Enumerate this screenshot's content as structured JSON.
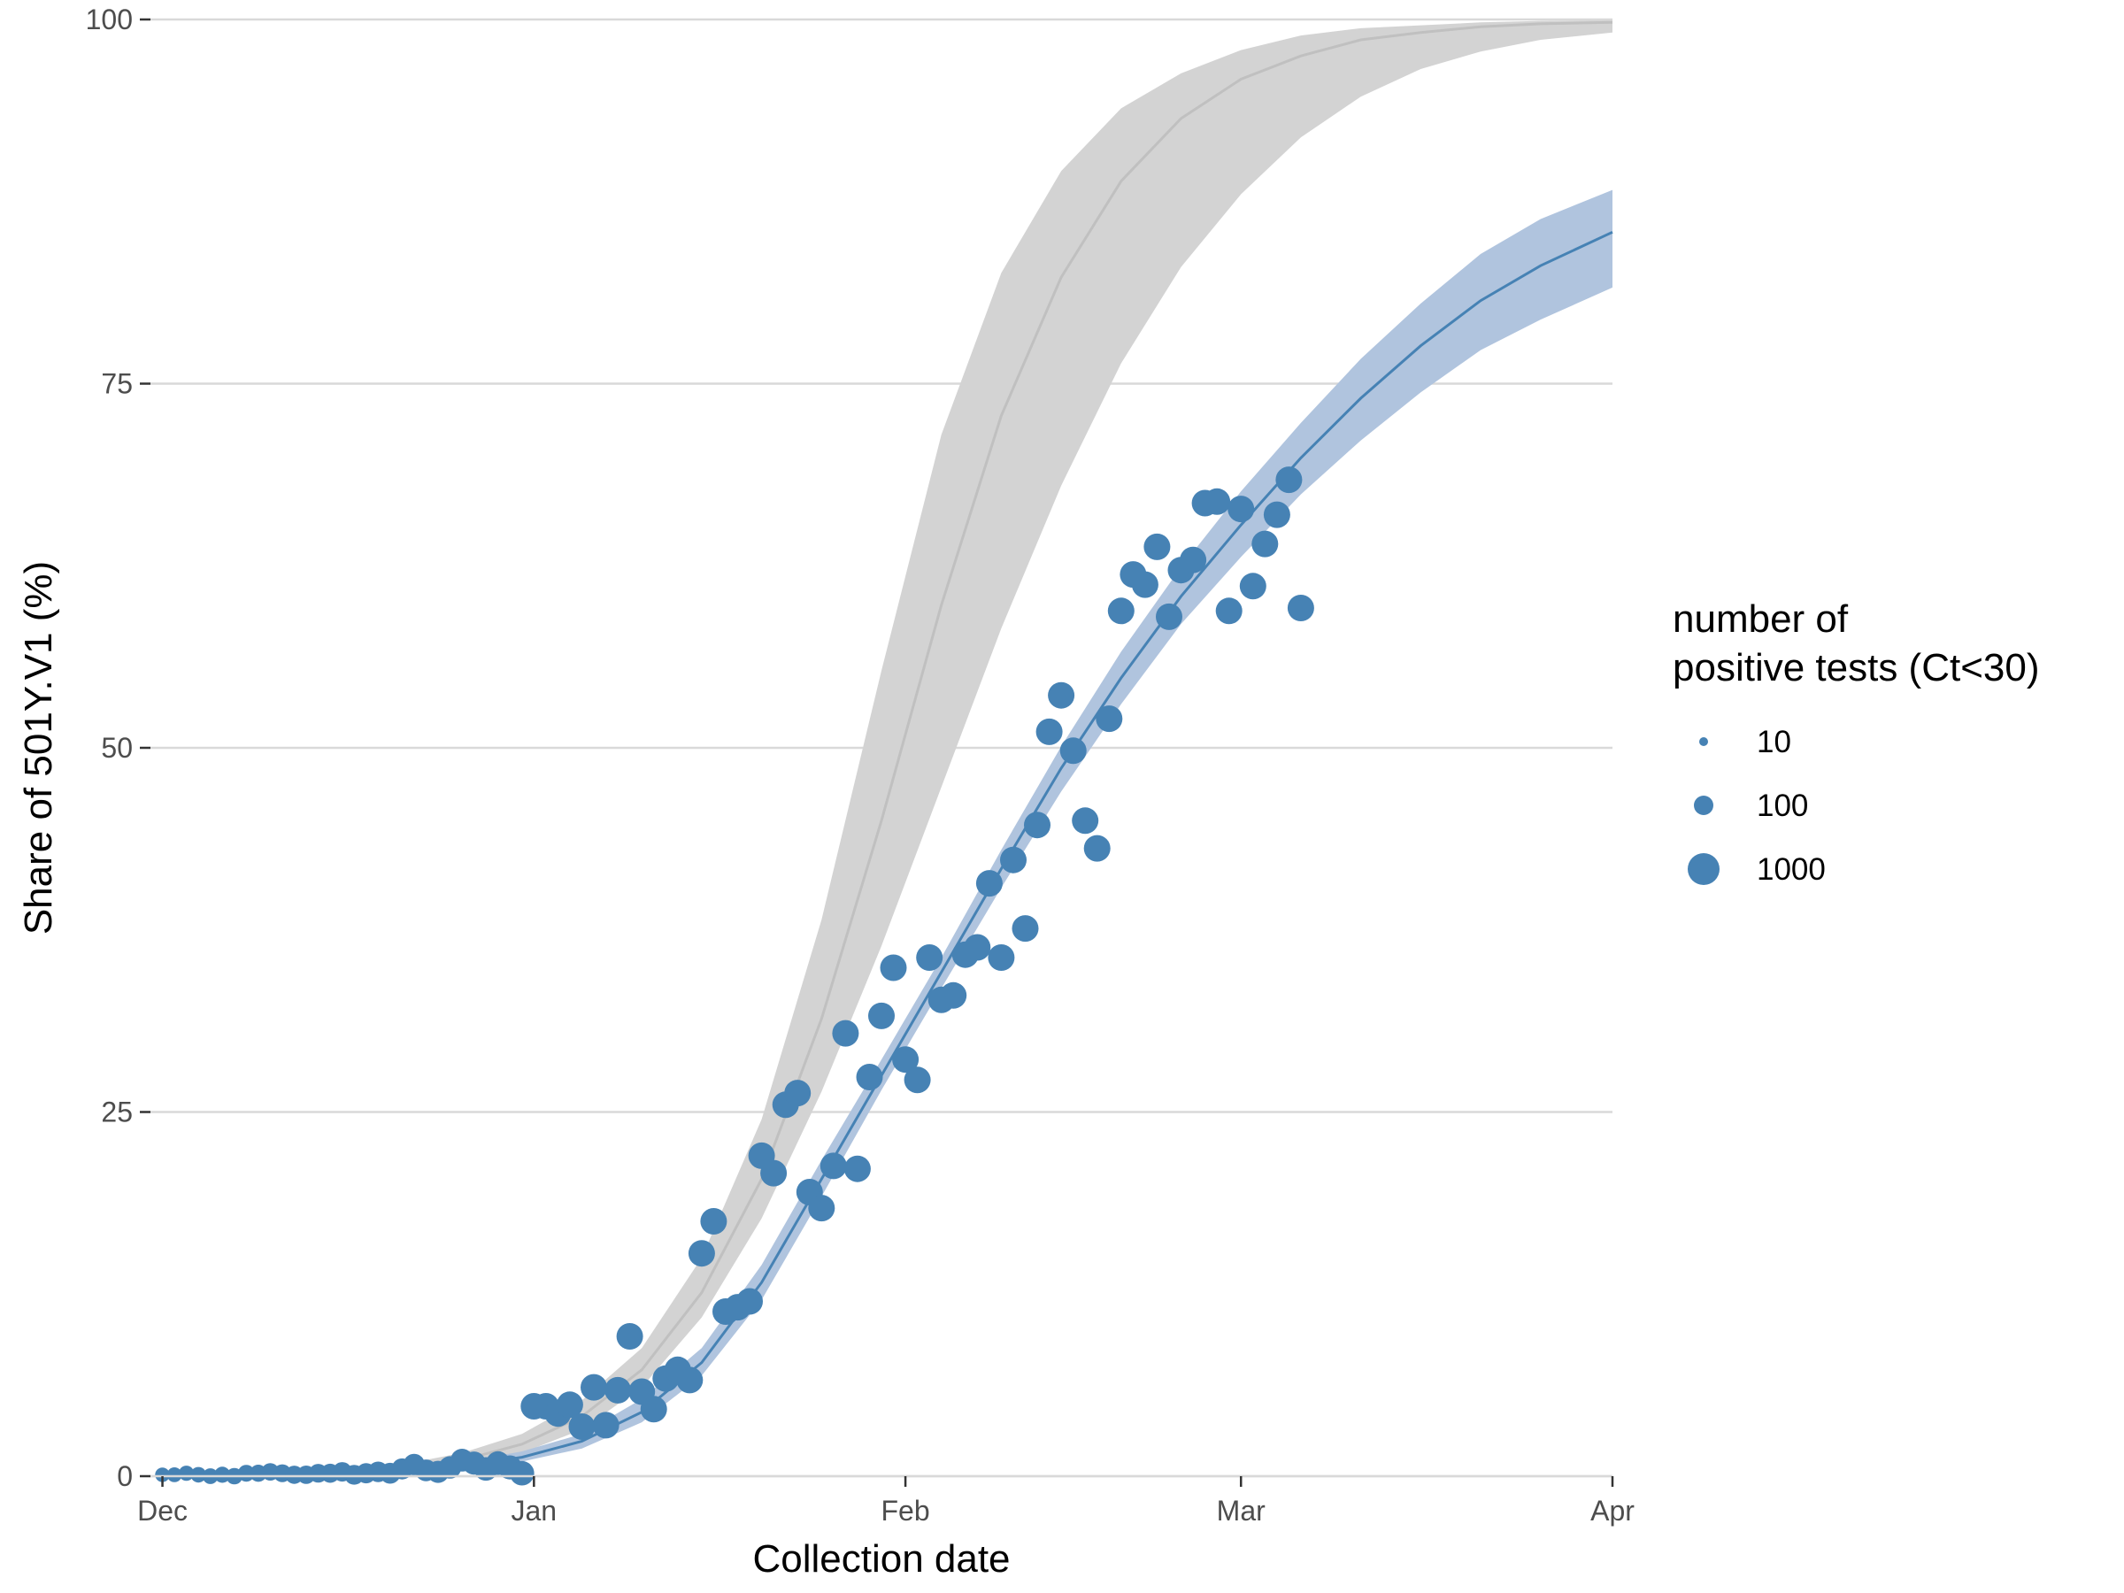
{
  "chart_data": {
    "type": "scatter",
    "xlabel": "Collection date",
    "ylabel": "Share of 501Y.V1 (%)",
    "xlim": [
      "2020-11-30",
      "2021-04-01"
    ],
    "ylim": [
      0,
      100
    ],
    "x_ticks": [
      {
        "date": "2020-12-01",
        "label": "Dec"
      },
      {
        "date": "2021-01-01",
        "label": "Jan"
      },
      {
        "date": "2021-02-01",
        "label": "Feb"
      },
      {
        "date": "2021-03-01",
        "label": "Mar"
      },
      {
        "date": "2021-04-01",
        "label": "Apr"
      }
    ],
    "y_ticks": [
      0,
      25,
      50,
      75,
      100
    ],
    "grid": true,
    "colors": {
      "points": "#4682b4",
      "fit_line": "#4682b4",
      "fit_band": "#b0c4de",
      "projection_line": "#c0c0c0",
      "projection_band": "#d3d3d3",
      "grid": "#d9d9d9"
    },
    "legend": {
      "title_lines": [
        "number of",
        "positive tests (Ct<30)"
      ],
      "position": "right",
      "entries": [
        {
          "label": "10",
          "value": 10
        },
        {
          "label": "100",
          "value": 100
        },
        {
          "label": "1000",
          "value": 1000
        }
      ]
    },
    "fit": {
      "description": "logistic",
      "x": [
        "2020-12-01",
        "2020-12-11",
        "2020-12-21",
        "2020-12-26",
        "2020-12-31",
        "2021-01-05",
        "2021-01-10",
        "2021-01-15",
        "2021-01-20",
        "2021-01-25",
        "2021-01-30",
        "2021-02-04",
        "2021-02-09",
        "2021-02-14",
        "2021-02-19",
        "2021-02-24",
        "2021-03-01",
        "2021-03-06",
        "2021-03-11",
        "2021-03-16",
        "2021-03-21",
        "2021-03-26",
        "2021-04-01"
      ],
      "y": [
        0.02,
        0.08,
        0.35,
        0.7,
        1.3,
        2.4,
        4.4,
        7.8,
        13.3,
        20.4,
        27.5,
        34.6,
        41.7,
        48.6,
        54.8,
        60.4,
        65.3,
        69.9,
        74.0,
        77.6,
        80.7,
        83.1,
        85.4
      ],
      "lower": [
        0.01,
        0.05,
        0.25,
        0.5,
        1.0,
        1.9,
        3.7,
        6.9,
        12.1,
        19.2,
        26.5,
        33.5,
        40.4,
        47.0,
        53.0,
        58.5,
        63.1,
        67.4,
        71.1,
        74.4,
        77.3,
        79.4,
        81.6
      ],
      "upper": [
        0.04,
        0.12,
        0.5,
        0.95,
        1.7,
        2.9,
        5.3,
        8.8,
        14.5,
        21.7,
        28.6,
        35.6,
        43.0,
        50.1,
        56.6,
        62.4,
        67.6,
        72.3,
        76.7,
        80.5,
        83.9,
        86.3,
        88.3
      ]
    },
    "projection": {
      "x": [
        "2020-12-01",
        "2020-12-11",
        "2020-12-21",
        "2020-12-26",
        "2020-12-31",
        "2021-01-05",
        "2021-01-10",
        "2021-01-15",
        "2021-01-20",
        "2021-01-25",
        "2021-01-30",
        "2021-02-04",
        "2021-02-09",
        "2021-02-14",
        "2021-02-19",
        "2021-02-24",
        "2021-03-01",
        "2021-03-06",
        "2021-03-11",
        "2021-03-16",
        "2021-03-21",
        "2021-03-26",
        "2021-04-01"
      ],
      "y": [
        0.02,
        0.1,
        0.5,
        1.1,
        2.2,
        4.1,
        7.3,
        12.6,
        20.4,
        31.4,
        45.0,
        59.8,
        72.8,
        82.3,
        88.9,
        93.2,
        95.9,
        97.5,
        98.6,
        99.1,
        99.5,
        99.7,
        99.8
      ],
      "lower": [
        0.01,
        0.07,
        0.35,
        0.8,
        1.6,
        3.2,
        6.1,
        10.9,
        17.7,
        26.4,
        36.4,
        47.3,
        58.2,
        68.0,
        76.4,
        83.0,
        88.0,
        91.9,
        94.7,
        96.6,
        97.8,
        98.6,
        99.1
      ],
      "upper": [
        0.04,
        0.15,
        0.8,
        1.6,
        2.9,
        5.2,
        8.8,
        15.0,
        24.5,
        38.2,
        55.3,
        71.5,
        82.6,
        89.6,
        93.9,
        96.3,
        97.9,
        98.9,
        99.4,
        99.6,
        99.8,
        99.9,
        99.95
      ]
    },
    "points": [
      {
        "x": "2020-12-01",
        "y": 0.1
      },
      {
        "x": "2020-12-02",
        "y": 0.1
      },
      {
        "x": "2020-12-03",
        "y": 0.2
      },
      {
        "x": "2020-12-04",
        "y": 0.1
      },
      {
        "x": "2020-12-05",
        "y": 0.0
      },
      {
        "x": "2020-12-06",
        "y": 0.1
      },
      {
        "x": "2020-12-07",
        "y": 0.0
      },
      {
        "x": "2020-12-08",
        "y": 0.2
      },
      {
        "x": "2020-12-09",
        "y": 0.2
      },
      {
        "x": "2020-12-10",
        "y": 0.3
      },
      {
        "x": "2020-12-11",
        "y": 0.2
      },
      {
        "x": "2020-12-12",
        "y": 0.1
      },
      {
        "x": "2020-12-13",
        "y": 0.1
      },
      {
        "x": "2020-12-14",
        "y": 0.2
      },
      {
        "x": "2020-12-15",
        "y": 0.2
      },
      {
        "x": "2020-12-16",
        "y": 0.3
      },
      {
        "x": "2020-12-17",
        "y": 0.1
      },
      {
        "x": "2020-12-18",
        "y": 0.2
      },
      {
        "x": "2020-12-19",
        "y": 0.3
      },
      {
        "x": "2020-12-20",
        "y": 0.2
      },
      {
        "x": "2020-12-21",
        "y": 0.5
      },
      {
        "x": "2020-12-22",
        "y": 0.8
      },
      {
        "x": "2020-12-23",
        "y": 0.4
      },
      {
        "x": "2020-12-24",
        "y": 0.3
      },
      {
        "x": "2020-12-25",
        "y": 0.6
      },
      {
        "x": "2020-12-26",
        "y": 1.1
      },
      {
        "x": "2020-12-27",
        "y": 0.9
      },
      {
        "x": "2020-12-28",
        "y": 0.5
      },
      {
        "x": "2020-12-29",
        "y": 0.9
      },
      {
        "x": "2020-12-30",
        "y": 0.6
      },
      {
        "x": "2020-12-31",
        "y": 0.2
      },
      {
        "x": "2021-01-01",
        "y": 4.8
      },
      {
        "x": "2021-01-02",
        "y": 4.8
      },
      {
        "x": "2021-01-03",
        "y": 4.3
      },
      {
        "x": "2021-01-04",
        "y": 4.9
      },
      {
        "x": "2021-01-05",
        "y": 3.4
      },
      {
        "x": "2021-01-06",
        "y": 6.1
      },
      {
        "x": "2021-01-07",
        "y": 3.5
      },
      {
        "x": "2021-01-08",
        "y": 5.9
      },
      {
        "x": "2021-01-09",
        "y": 9.6
      },
      {
        "x": "2021-01-10",
        "y": 5.8
      },
      {
        "x": "2021-01-11",
        "y": 4.6
      },
      {
        "x": "2021-01-12",
        "y": 6.7
      },
      {
        "x": "2021-01-13",
        "y": 7.3
      },
      {
        "x": "2021-01-14",
        "y": 6.6
      },
      {
        "x": "2021-01-15",
        "y": 15.3
      },
      {
        "x": "2021-01-16",
        "y": 17.5
      },
      {
        "x": "2021-01-17",
        "y": 11.3
      },
      {
        "x": "2021-01-18",
        "y": 11.6
      },
      {
        "x": "2021-01-19",
        "y": 12.0
      },
      {
        "x": "2021-01-20",
        "y": 22.0
      },
      {
        "x": "2021-01-21",
        "y": 20.8
      },
      {
        "x": "2021-01-22",
        "y": 25.5
      },
      {
        "x": "2021-01-23",
        "y": 26.3
      },
      {
        "x": "2021-01-24",
        "y": 19.5
      },
      {
        "x": "2021-01-25",
        "y": 18.4
      },
      {
        "x": "2021-01-26",
        "y": 21.3
      },
      {
        "x": "2021-01-27",
        "y": 30.4
      },
      {
        "x": "2021-01-28",
        "y": 21.1
      },
      {
        "x": "2021-01-29",
        "y": 27.4
      },
      {
        "x": "2021-01-30",
        "y": 31.6
      },
      {
        "x": "2021-01-31",
        "y": 34.9
      },
      {
        "x": "2021-02-01",
        "y": 28.6
      },
      {
        "x": "2021-02-02",
        "y": 27.2
      },
      {
        "x": "2021-02-03",
        "y": 35.6
      },
      {
        "x": "2021-02-04",
        "y": 32.7
      },
      {
        "x": "2021-02-05",
        "y": 33.0
      },
      {
        "x": "2021-02-06",
        "y": 35.8
      },
      {
        "x": "2021-02-07",
        "y": 36.3
      },
      {
        "x": "2021-02-08",
        "y": 40.7
      },
      {
        "x": "2021-02-09",
        "y": 35.6
      },
      {
        "x": "2021-02-10",
        "y": 42.3
      },
      {
        "x": "2021-02-11",
        "y": 37.6
      },
      {
        "x": "2021-02-12",
        "y": 44.7
      },
      {
        "x": "2021-02-13",
        "y": 51.1
      },
      {
        "x": "2021-02-14",
        "y": 53.6
      },
      {
        "x": "2021-02-15",
        "y": 49.8
      },
      {
        "x": "2021-02-16",
        "y": 45.0
      },
      {
        "x": "2021-02-17",
        "y": 43.1
      },
      {
        "x": "2021-02-18",
        "y": 52.0
      },
      {
        "x": "2021-02-19",
        "y": 59.4
      },
      {
        "x": "2021-02-20",
        "y": 61.9
      },
      {
        "x": "2021-02-21",
        "y": 61.2
      },
      {
        "x": "2021-02-22",
        "y": 63.8
      },
      {
        "x": "2021-02-23",
        "y": 59.0
      },
      {
        "x": "2021-02-24",
        "y": 62.2
      },
      {
        "x": "2021-02-25",
        "y": 62.9
      },
      {
        "x": "2021-02-26",
        "y": 66.8
      },
      {
        "x": "2021-02-27",
        "y": 66.9
      },
      {
        "x": "2021-02-28",
        "y": 59.4
      },
      {
        "x": "2021-03-01",
        "y": 66.4
      },
      {
        "x": "2021-03-02",
        "y": 61.1
      },
      {
        "x": "2021-03-03",
        "y": 64.0
      },
      {
        "x": "2021-03-04",
        "y": 66.0
      },
      {
        "x": "2021-03-05",
        "y": 68.4
      },
      {
        "x": "2021-03-06",
        "y": 59.6
      }
    ]
  }
}
